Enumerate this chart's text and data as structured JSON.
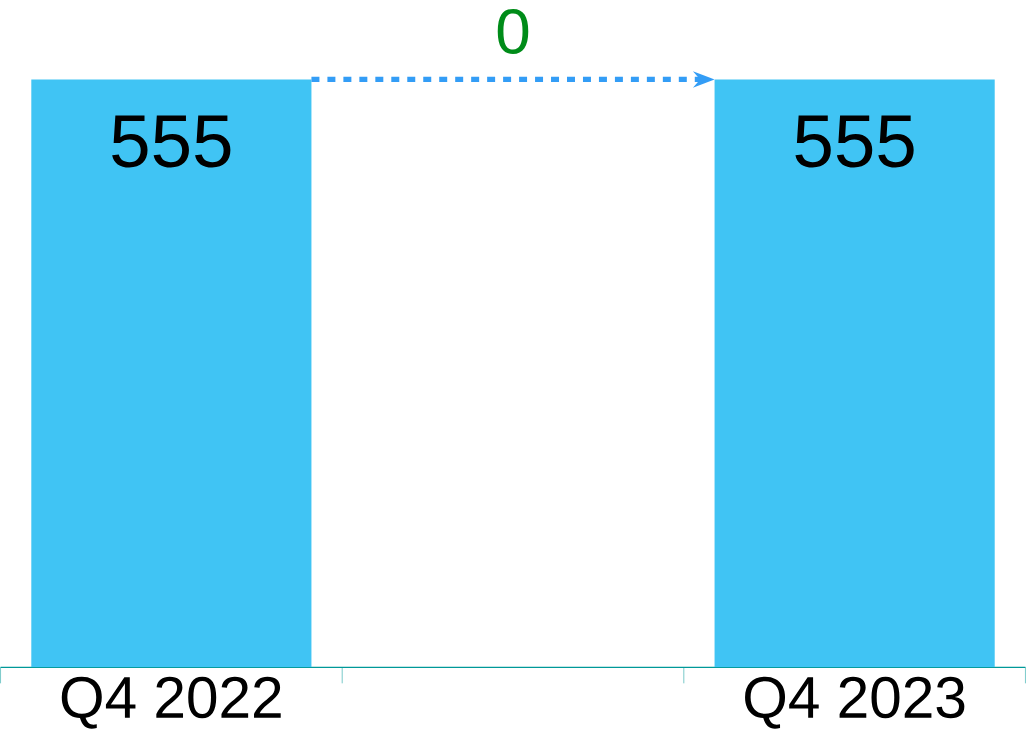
{
  "chart_data": {
    "type": "bar",
    "categories": [
      "Q4 2022",
      null,
      "Q4 2023"
    ],
    "values": [
      555,
      null,
      555
    ],
    "color": "#40c4f4",
    "data_labels": true,
    "annotations": [
      "0"
    ]
  }
}
